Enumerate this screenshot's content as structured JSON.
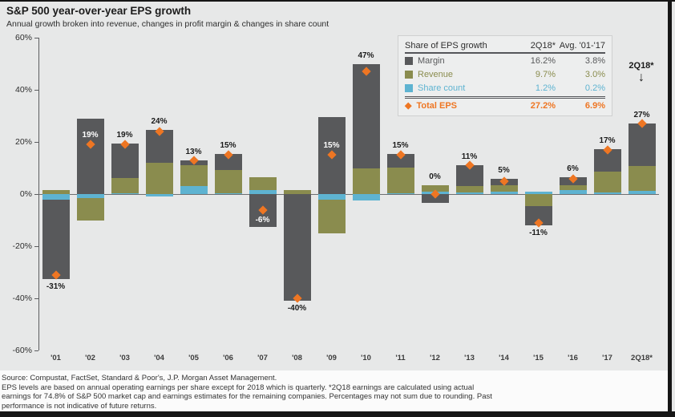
{
  "header": {
    "title": "S&P 500 year-over-year EPS growth",
    "subtitle": "Annual growth broken into revenue, changes in profit margin & changes in share count"
  },
  "colors": {
    "margin": "#58595B",
    "revenue": "#8A8C4E",
    "share_count": "#5EB3D1",
    "total_eps": "#EE7623",
    "panel_background": "#E7E8E8",
    "label_dark": "#1a1a1a",
    "label_light": "#FFFFFF"
  },
  "legend": {
    "header": [
      "Share of EPS growth",
      "2Q18*",
      "Avg. '01-'17"
    ],
    "rows": [
      {
        "label": "Margin",
        "q": "16.2%",
        "avg": "3.8%",
        "color": "#58595B"
      },
      {
        "label": "Revenue",
        "q": "9.7%",
        "avg": "3.0%",
        "color": "#8A8C4E"
      },
      {
        "label": "Share count",
        "q": "1.2%",
        "avg": "0.2%",
        "color": "#5EB3D1"
      }
    ],
    "total": {
      "label": "Total EPS",
      "q": "27.2%",
      "avg": "6.9%",
      "color": "#EE7623",
      "icon": "◆"
    }
  },
  "annotation": {
    "label": "2Q18*",
    "arrow": "↓"
  },
  "chart_data": {
    "type": "bar",
    "stacked": true,
    "title": "S&P 500 year-over-year EPS growth",
    "xlabel": "",
    "ylabel": "",
    "ylim": [
      -60,
      60
    ],
    "grid": false,
    "legend_position": "top-right",
    "categories": [
      "'01",
      "'02",
      "'03",
      "'04",
      "'05",
      "'06",
      "'07",
      "'08",
      "'09",
      "'10",
      "'11",
      "'12",
      "'13",
      "'14",
      "'15",
      "'16",
      "'17",
      "2Q18*"
    ],
    "yticks": [
      {
        "value": 60,
        "label": "60%"
      },
      {
        "value": 40,
        "label": "40%"
      },
      {
        "value": 20,
        "label": "20%"
      },
      {
        "value": 0,
        "label": "0%"
      },
      {
        "value": -20,
        "label": "-20%"
      },
      {
        "value": -40,
        "label": "-40%"
      },
      {
        "value": -60,
        "label": "-60%"
      }
    ],
    "series": [
      {
        "name": "Margin",
        "color": "#58595B",
        "values": [
          -30.5,
          29,
          13,
          12.5,
          2,
          6,
          -12.5,
          -41,
          29.5,
          40,
          5,
          -3.5,
          8,
          2.5,
          -7.5,
          3,
          8.5,
          16.2
        ]
      },
      {
        "name": "Revenue",
        "color": "#8A8C4E",
        "values": [
          1.5,
          -8.5,
          6,
          12,
          8,
          9,
          5,
          1.5,
          -13,
          10,
          10,
          2.5,
          2.5,
          2.5,
          -4.5,
          2,
          8,
          9.7
        ]
      },
      {
        "name": "Share count",
        "color": "#5EB3D1",
        "values": [
          -2,
          -1.5,
          0.3,
          -1,
          3,
          0.3,
          1.5,
          0,
          -2,
          -2.5,
          0.3,
          1,
          0.5,
          1,
          1,
          1.5,
          0.7,
          1.2
        ]
      }
    ],
    "total_eps": {
      "name": "Total EPS",
      "color": "#EE7623",
      "values": [
        -31,
        19,
        19,
        24,
        13,
        15,
        -6,
        -40,
        15,
        47,
        15,
        0,
        11,
        5,
        -11,
        6,
        17,
        27
      ]
    },
    "point_labels": [
      "-31%",
      "19%",
      "19%",
      "24%",
      "13%",
      "15%",
      "-6%",
      "-40%",
      "15%",
      "47%",
      "15%",
      "0%",
      "11%",
      "5%",
      "-11%",
      "6%",
      "17%",
      "27%"
    ],
    "point_label_pos": [
      "below",
      "inside",
      "above",
      "above",
      "above",
      "above",
      "inside",
      "below",
      "inside",
      "above",
      "above",
      "above",
      "above",
      "above",
      "below",
      "above",
      "above",
      "above"
    ]
  },
  "footer": {
    "lines": [
      "Source: Compustat, FactSet, Standard & Poor's, J.P. Morgan Asset Management.",
      "EPS levels are based on annual operating earnings per share except for 2018 which is quarterly. *2Q18 earnings are calculated using actual",
      "earnings for 74.8% of S&P 500 market cap and earnings estimates for the remaining companies. Percentages may not sum due to rounding. Past",
      "performance is not indicative of future returns."
    ]
  }
}
